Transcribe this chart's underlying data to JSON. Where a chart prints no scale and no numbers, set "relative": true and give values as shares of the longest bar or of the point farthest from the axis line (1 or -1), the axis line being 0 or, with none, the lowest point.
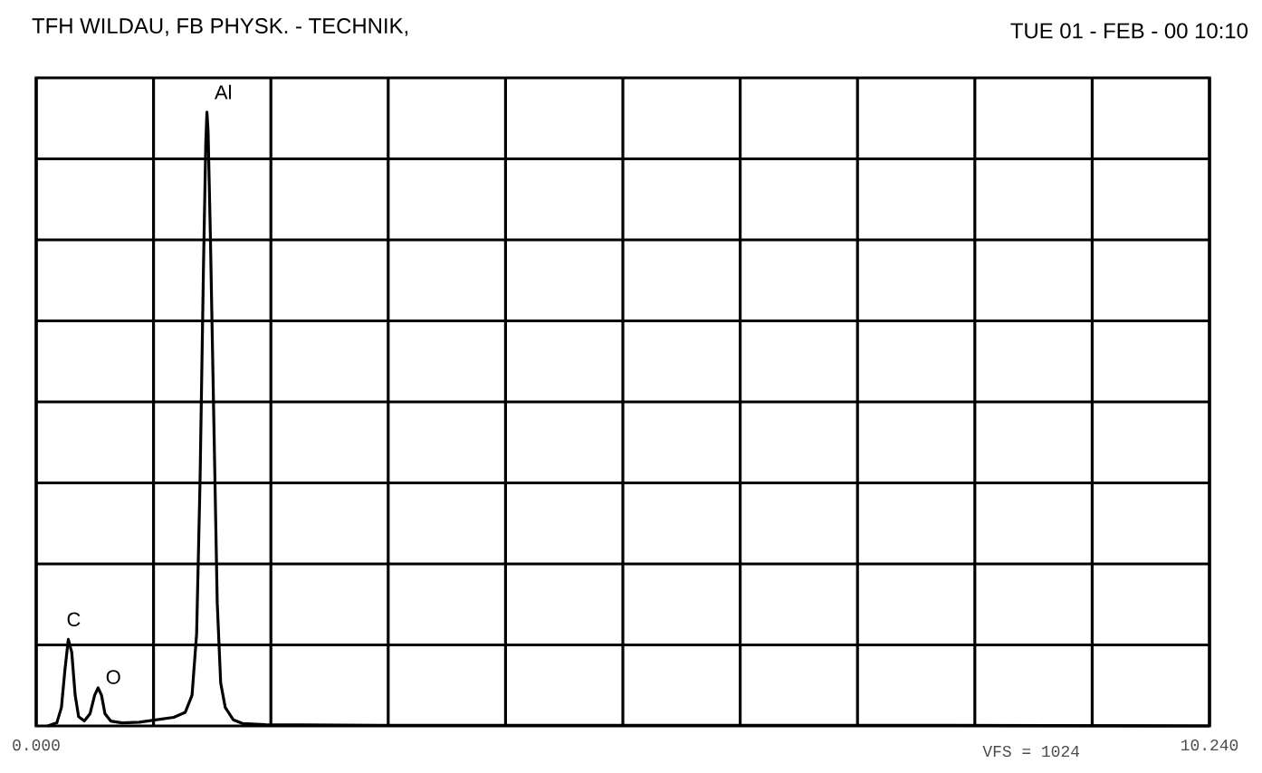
{
  "chart_data": {
    "type": "line",
    "title": "TFH WILDAU,   FB PHYSK. - TECHNIK,",
    "subtitle": "TUE  01 - FEB - 00    10:10",
    "relative": true,
    "grid": true,
    "x": [
      0.1,
      0.18,
      0.22,
      0.25,
      0.28,
      0.31,
      0.34,
      0.37,
      0.42,
      0.47,
      0.51,
      0.54,
      0.57,
      0.6,
      0.65,
      0.75,
      0.9,
      1.05,
      1.2,
      1.3,
      1.36,
      1.4,
      1.43,
      1.46,
      1.48,
      1.49,
      1.5,
      1.52,
      1.55,
      1.58,
      1.61,
      1.65,
      1.72,
      1.8,
      2.0,
      3.0,
      5.0,
      8.0,
      10.24
    ],
    "series": [
      {
        "color": "#000000",
        "values": [
          0.0,
          0.005,
          0.03,
          0.09,
          0.141,
          0.12,
          0.05,
          0.015,
          0.008,
          0.02,
          0.05,
          0.062,
          0.05,
          0.02,
          0.008,
          0.005,
          0.006,
          0.01,
          0.014,
          0.022,
          0.05,
          0.15,
          0.4,
          0.75,
          0.95,
          1.0,
          0.97,
          0.8,
          0.5,
          0.2,
          0.07,
          0.03,
          0.01,
          0.004,
          0.002,
          0.001,
          0.001,
          0.001,
          0.0
        ]
      }
    ],
    "xlim": [
      0,
      10.24
    ],
    "xticks": [
      {
        "value": 0,
        "label": "0.000"
      },
      {
        "value": 1.024,
        "label": null
      },
      {
        "value": 2.048,
        "label": null
      },
      {
        "value": 3.072,
        "label": null
      },
      {
        "value": 4.096,
        "label": null
      },
      {
        "value": 5.12,
        "label": null
      },
      {
        "value": 6.144,
        "label": null
      },
      {
        "value": 7.168,
        "label": null
      },
      {
        "value": 8.192,
        "label": null
      },
      {
        "value": 9.216,
        "label": null
      },
      {
        "value": 10.24,
        "label": "10.240"
      }
    ],
    "annotations": [
      {
        "text": "Al",
        "x": 1.49,
        "y": 1.0
      },
      {
        "text": "C",
        "x": 0.28,
        "y": 0.141
      },
      {
        "text": "O",
        "x": 0.54,
        "y": 0.062
      },
      "VFS = 1024"
    ]
  }
}
